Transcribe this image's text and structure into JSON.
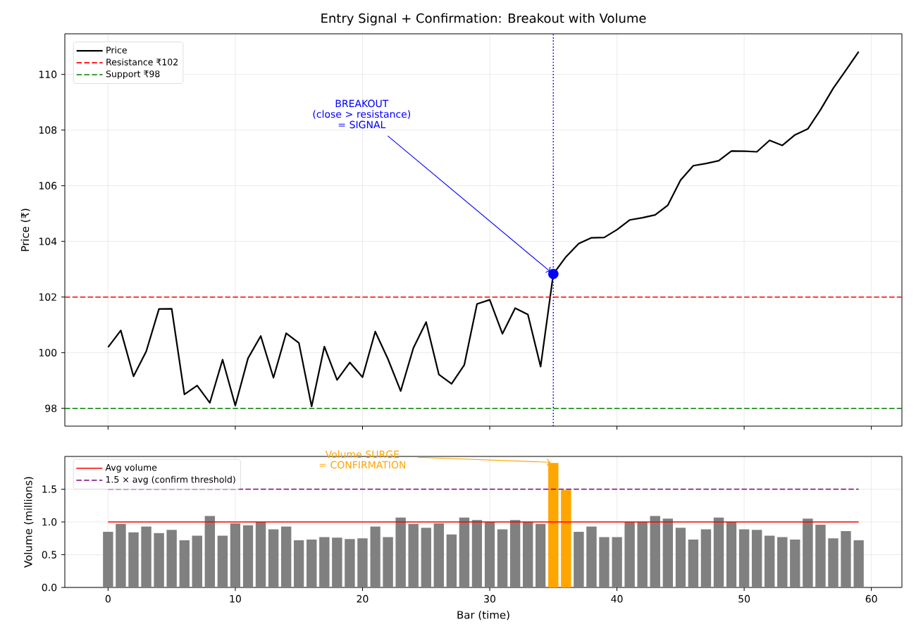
{
  "chart_data": [
    {
      "type": "line",
      "title": "Entry Signal + Confirmation: Breakout with Volume",
      "ylabel": "Price (₹)",
      "series": [
        {
          "name": "Price",
          "color": "#000000",
          "marker": "none",
          "line_style": "solid",
          "x": [
            0,
            1,
            2,
            3,
            4,
            5,
            6,
            7,
            8,
            9,
            10,
            11,
            12,
            13,
            14,
            15,
            16,
            17,
            18,
            19,
            20,
            21,
            22,
            23,
            24,
            25,
            26,
            27,
            28,
            29,
            30,
            31,
            32,
            33,
            34,
            35,
            36,
            37,
            38,
            39,
            40,
            41,
            42,
            43,
            44,
            45,
            46,
            47,
            48,
            49,
            50,
            51,
            52,
            53,
            54,
            55,
            56,
            57,
            58,
            59
          ],
          "values": [
            100.2,
            100.8,
            99.15,
            100.05,
            101.57,
            101.58,
            98.5,
            98.82,
            98.2,
            99.75,
            98.1,
            99.8,
            100.6,
            99.1,
            100.7,
            100.35,
            98.07,
            100.22,
            99.02,
            99.65,
            99.12,
            100.76,
            99.77,
            98.62,
            100.17,
            101.1,
            99.22,
            98.88,
            99.56,
            101.75,
            101.9,
            100.68,
            101.6,
            101.37,
            99.5,
            102.83,
            103.45,
            103.92,
            104.13,
            104.14,
            104.42,
            104.77,
            104.85,
            104.95,
            105.3,
            106.2,
            106.72,
            106.8,
            106.9,
            107.25,
            107.24,
            107.22,
            107.63,
            107.45,
            107.83,
            108.04,
            108.73,
            109.5,
            110.15,
            110.82
          ]
        },
        {
          "type": "scatter",
          "color": "#0000ff",
          "marker": "circle",
          "x": [
            35
          ],
          "values": [
            102.83
          ]
        }
      ],
      "ref_lines": [
        {
          "axis": "y",
          "value": 102,
          "label": "Resistance ₹102",
          "color": "#ff0000",
          "line_style": "dashed"
        },
        {
          "axis": "y",
          "value": 98,
          "label": "Support ₹98",
          "color": "#008000",
          "line_style": "dashed"
        },
        {
          "axis": "x",
          "value": 35,
          "color": "#0000ff",
          "line_style": "dotted"
        }
      ],
      "annotations": [
        {
          "text": "BREAKOUT\n(close > resistance)\n= SIGNAL",
          "x": 35,
          "y": 102.83
        }
      ],
      "xlim": [
        -3.4,
        62.4
      ],
      "ylim": [
        97.36,
        111.46
      ],
      "xticks": [
        0,
        10,
        20,
        30,
        40,
        50,
        60
      ],
      "yticks": [
        98,
        100,
        102,
        104,
        106,
        108,
        110
      ],
      "tick_labels": "y",
      "grid": true,
      "legend": "top left"
    },
    {
      "type": "bar",
      "xlabel": "Bar (time)",
      "ylabel": "Volume (millions)",
      "series": [
        {
          "x": [
            0,
            1,
            2,
            3,
            4,
            5,
            6,
            7,
            8,
            9,
            10,
            11,
            12,
            13,
            14,
            15,
            16,
            17,
            18,
            19,
            20,
            21,
            22,
            23,
            24,
            25,
            26,
            27,
            28,
            29,
            30,
            31,
            32,
            33,
            34,
            35,
            36,
            37,
            38,
            39,
            40,
            41,
            42,
            43,
            44,
            45,
            46,
            47,
            48,
            49,
            50,
            51,
            52,
            53,
            54,
            55,
            56,
            57,
            58,
            59
          ],
          "values": [
            0.85,
            0.97,
            0.84,
            0.93,
            0.83,
            0.88,
            0.72,
            0.79,
            1.09,
            0.79,
            0.98,
            0.95,
            1.0,
            0.89,
            0.93,
            0.72,
            0.73,
            0.77,
            0.76,
            0.74,
            0.75,
            0.93,
            0.77,
            1.07,
            0.97,
            0.91,
            0.98,
            0.81,
            1.07,
            1.03,
            1.0,
            0.89,
            1.03,
            1.0,
            0.97,
            1.9,
            1.49,
            0.85,
            0.93,
            0.77,
            0.77,
            1.0,
            1.0,
            1.09,
            1.05,
            0.91,
            0.73,
            0.89,
            1.07,
            1.0,
            0.89,
            0.88,
            0.79,
            0.77,
            0.73,
            1.05,
            0.96,
            0.75,
            0.86,
            0.72
          ],
          "colors": [
            "#808080",
            "#808080",
            "#808080",
            "#808080",
            "#808080",
            "#808080",
            "#808080",
            "#808080",
            "#808080",
            "#808080",
            "#808080",
            "#808080",
            "#808080",
            "#808080",
            "#808080",
            "#808080",
            "#808080",
            "#808080",
            "#808080",
            "#808080",
            "#808080",
            "#808080",
            "#808080",
            "#808080",
            "#808080",
            "#808080",
            "#808080",
            "#808080",
            "#808080",
            "#808080",
            "#808080",
            "#808080",
            "#808080",
            "#808080",
            "#808080",
            "#ffa500",
            "#ffa500",
            "#808080",
            "#808080",
            "#808080",
            "#808080",
            "#808080",
            "#808080",
            "#808080",
            "#808080",
            "#808080",
            "#808080",
            "#808080",
            "#808080",
            "#808080",
            "#808080",
            "#808080",
            "#808080",
            "#808080",
            "#808080",
            "#808080",
            "#808080",
            "#808080",
            "#808080",
            "#808080"
          ]
        },
        {
          "type": "line",
          "name": "Avg volume",
          "color": "#ff0000",
          "line_style": "solid",
          "marker": "none",
          "x": [
            0,
            59
          ],
          "values": [
            1.0,
            1.0
          ]
        },
        {
          "type": "line",
          "name": "1.5 × avg (confirm threshold)",
          "color": "#800080",
          "line_style": "dashed",
          "marker": "none",
          "x": [
            0,
            59
          ],
          "values": [
            1.5,
            1.5
          ]
        }
      ],
      "annotations": [
        {
          "text": "Volume SURGE\n= CONFIRMATION",
          "x": 35,
          "y": 1.9
        }
      ],
      "xlim": [
        -3.4,
        62.4
      ],
      "ylim": [
        0,
        2.0
      ],
      "xticks": [
        0,
        10,
        20,
        30,
        40,
        50,
        60
      ],
      "yticks": [
        {
          "value": 0,
          "label": "0.0"
        },
        {
          "value": 0.5,
          "label": "0.5"
        },
        {
          "value": 1.0,
          "label": "1.0"
        },
        {
          "value": 1.5,
          "label": "1.5"
        }
      ],
      "grid": true,
      "legend": "top left"
    }
  ]
}
